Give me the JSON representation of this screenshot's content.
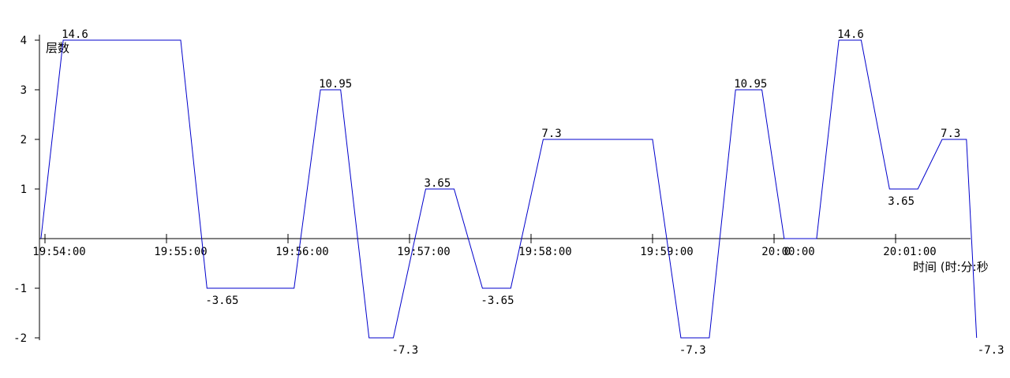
{
  "chart_data": {
    "type": "line",
    "title": "",
    "ylabel": "层数",
    "xlabel": "时间 (时:分:秒",
    "y_ticks": [
      "4",
      "3",
      "2",
      "1",
      "-1",
      "-2"
    ],
    "y_tick_values": [
      4,
      3,
      2,
      1,
      -1,
      -2
    ],
    "ylim": [
      -2,
      4
    ],
    "x_ticks": [
      "19:54:00",
      "19:55:00",
      "19:56:00",
      "19:57:00",
      "19:58:00",
      "19:59:00",
      "20:00:00",
      "20:01:00"
    ],
    "x_tick_seconds": [
      0,
      60,
      120,
      180,
      240,
      300,
      360,
      420
    ],
    "zero_label": "0",
    "grid": false,
    "legend": "none",
    "line_color": "#0000cc",
    "series": [
      {
        "x_seconds": [
          -2,
          9,
          67,
          80,
          123,
          136,
          146,
          160,
          172,
          188,
          202,
          216,
          230,
          246,
          300,
          314,
          328,
          341,
          354,
          365,
          369,
          381,
          392,
          403,
          417,
          431,
          443,
          455,
          460
        ],
        "y": [
          0,
          4,
          4,
          -1,
          -1,
          3,
          3,
          -2,
          -2,
          1,
          1,
          -1,
          -1,
          2,
          2,
          -2,
          -2,
          3,
          3,
          0,
          0,
          0,
          4,
          4,
          1,
          1,
          2,
          2,
          -2
        ]
      }
    ],
    "annotations": [
      {
        "label": "14.6",
        "x_seconds": 9,
        "y": 4,
        "pos": "above"
      },
      {
        "label": "-3.65",
        "x_seconds": 80,
        "y": -1,
        "pos": "below"
      },
      {
        "label": "10.95",
        "x_seconds": 136,
        "y": 3,
        "pos": "above"
      },
      {
        "label": "-7.3",
        "x_seconds": 172,
        "y": -2,
        "pos": "below"
      },
      {
        "label": "3.65",
        "x_seconds": 188,
        "y": 1,
        "pos": "above"
      },
      {
        "label": "-3.65",
        "x_seconds": 216,
        "y": -1,
        "pos": "below"
      },
      {
        "label": "7.3",
        "x_seconds": 246,
        "y": 2,
        "pos": "above"
      },
      {
        "label": "-7.3",
        "x_seconds": 314,
        "y": -2,
        "pos": "below"
      },
      {
        "label": "10.95",
        "x_seconds": 341,
        "y": 3,
        "pos": "above"
      },
      {
        "label": "14.6",
        "x_seconds": 392,
        "y": 4,
        "pos": "above"
      },
      {
        "label": "3.65",
        "x_seconds": 417,
        "y": 1,
        "pos": "below"
      },
      {
        "label": "7.3",
        "x_seconds": 443,
        "y": 2,
        "pos": "above"
      },
      {
        "label": "-7.3",
        "x_seconds": 460,
        "y": -2,
        "pos": "below"
      }
    ]
  }
}
